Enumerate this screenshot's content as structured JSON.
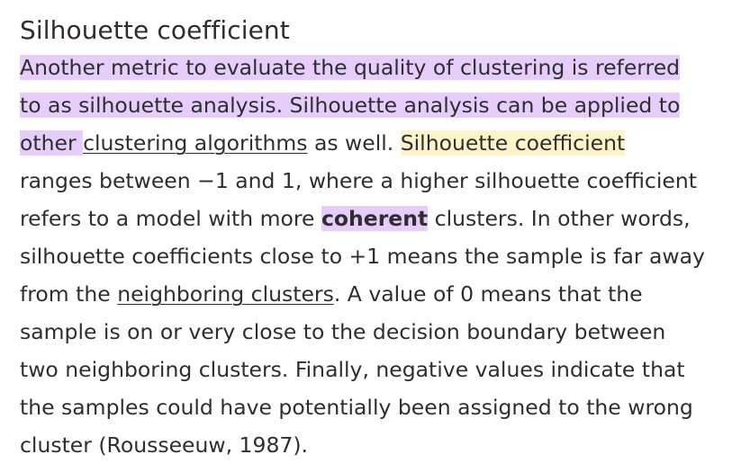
{
  "section": {
    "title": "Silhouette coefficient"
  },
  "paragraph": {
    "l1": "Another metric to evaluate the quality of clustering is referred",
    "l2": "to as silhouette analysis. Silhouette analysis can be applied to",
    "l3_pre": "other ",
    "l3_link": "clustering algorithms",
    "l3_mid": " as well. ",
    "l3_hl": "Silhouette coefficient",
    "l4": "ranges between −1 and 1, where a higher silhouette coefficient",
    "l5_pre": "refers to a model with more ",
    "l5_bold": "coherent",
    "l5_post": " clusters. In other words,",
    "l6": "silhouette coefficients close to +1 means the sample is far away",
    "l7_pre": "from the ",
    "l7_link": "neighboring clusters",
    "l7_post": ". A value of 0 means that the",
    "l8": "sample is on or very close to the decision boundary between",
    "l9": "two neighboring clusters. Finally, negative values indicate that",
    "l10": "the samples could have potentially been assigned to the wrong",
    "l11": "cluster (Rousseeuw, 1987)."
  },
  "colors": {
    "highlight_purple": "#e6cdfb",
    "highlight_yellow": "#fdf5c9",
    "text": "#2e2e2e"
  }
}
